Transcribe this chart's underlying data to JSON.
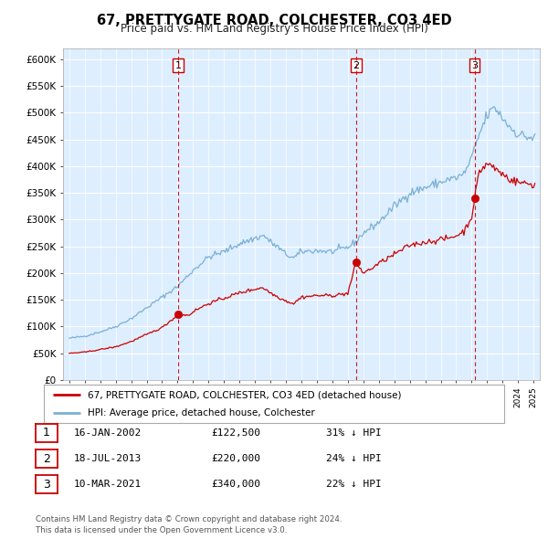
{
  "title": "67, PRETTYGATE ROAD, COLCHESTER, CO3 4ED",
  "subtitle": "Price paid vs. HM Land Registry's House Price Index (HPI)",
  "background_color": "#ffffff",
  "plot_bg_color": "#ddeeff",
  "grid_color": "#ccddee",
  "sale_color": "#cc0000",
  "hpi_color": "#7ab0d4",
  "dashed_line_color": "#cc0000",
  "ytick_labels": [
    "£0",
    "£50K",
    "£100K",
    "£150K",
    "£200K",
    "£250K",
    "£300K",
    "£350K",
    "£400K",
    "£450K",
    "£500K",
    "£550K",
    "£600K"
  ],
  "yticks": [
    0,
    50000,
    100000,
    150000,
    200000,
    250000,
    300000,
    350000,
    400000,
    450000,
    500000,
    550000,
    600000
  ],
  "sale_points": [
    {
      "date": 2002.04,
      "price": 122500,
      "label": "1"
    },
    {
      "date": 2013.54,
      "price": 220000,
      "label": "2"
    },
    {
      "date": 2021.19,
      "price": 340000,
      "label": "3"
    }
  ],
  "legend_entries": [
    {
      "label": "67, PRETTYGATE ROAD, COLCHESTER, CO3 4ED (detached house)",
      "color": "#cc0000"
    },
    {
      "label": "HPI: Average price, detached house, Colchester",
      "color": "#7ab0d4"
    }
  ],
  "table_rows": [
    {
      "num": "1",
      "date": "16-JAN-2002",
      "price": "£122,500",
      "pct": "31% ↓ HPI"
    },
    {
      "num": "2",
      "date": "18-JUL-2013",
      "price": "£220,000",
      "pct": "24% ↓ HPI"
    },
    {
      "num": "3",
      "date": "10-MAR-2021",
      "price": "£340,000",
      "pct": "22% ↓ HPI"
    }
  ],
  "footer": "Contains HM Land Registry data © Crown copyright and database right 2024.\nThis data is licensed under the Open Government Licence v3.0."
}
